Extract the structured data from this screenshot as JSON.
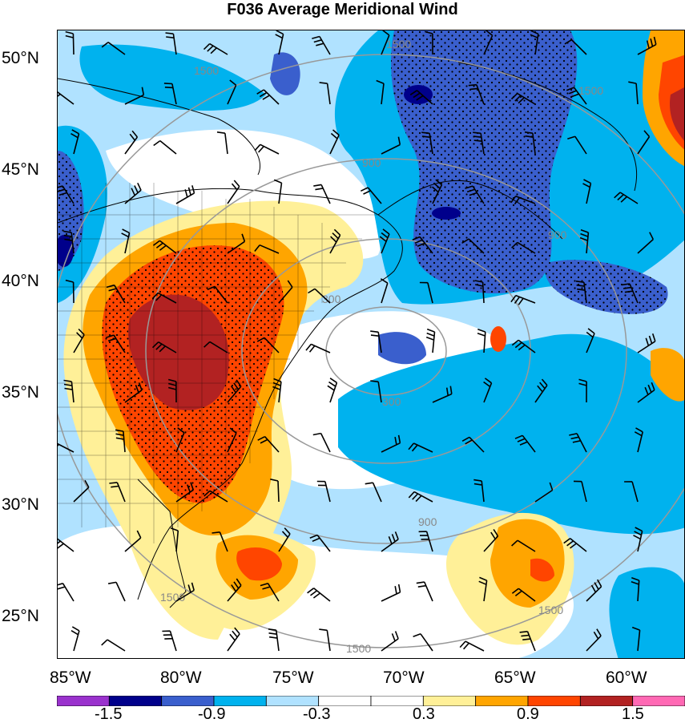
{
  "title": "F036 Average Meridional Wind",
  "lat_labels": [
    "50°N",
    "45°N",
    "40°N",
    "35°N",
    "30°N",
    "25°N"
  ],
  "lon_labels": [
    "85°W",
    "80°W",
    "75°W",
    "70°W",
    "65°W",
    "60°W"
  ],
  "contour_labels": [
    "1500",
    "1500",
    "900",
    "900",
    "300",
    "300",
    "900",
    "1500",
    "1500",
    "1500",
    "1500"
  ],
  "colorbar": {
    "labels": [
      "-1.5",
      "-0.9",
      "-0.3",
      "0.3",
      "0.9",
      "1.5"
    ],
    "colors": [
      "#9a32cd",
      "#00008b",
      "#3a5fcd",
      "#00b2ee",
      "#b0e2ff",
      "#ffffff",
      "#ffffff",
      "#fff098",
      "#ffa500",
      "#ff4500",
      "#b22222",
      "#ff69b4"
    ]
  },
  "fill_colors": {
    "light_blue": "#b0e2ff",
    "blue": "#00b2ee",
    "dark_blue": "#3a5fcd",
    "navy": "#00008b",
    "yellow": "#fff098",
    "orange": "#ffa500",
    "red": "#ff4500",
    "dark_red": "#b22222"
  }
}
